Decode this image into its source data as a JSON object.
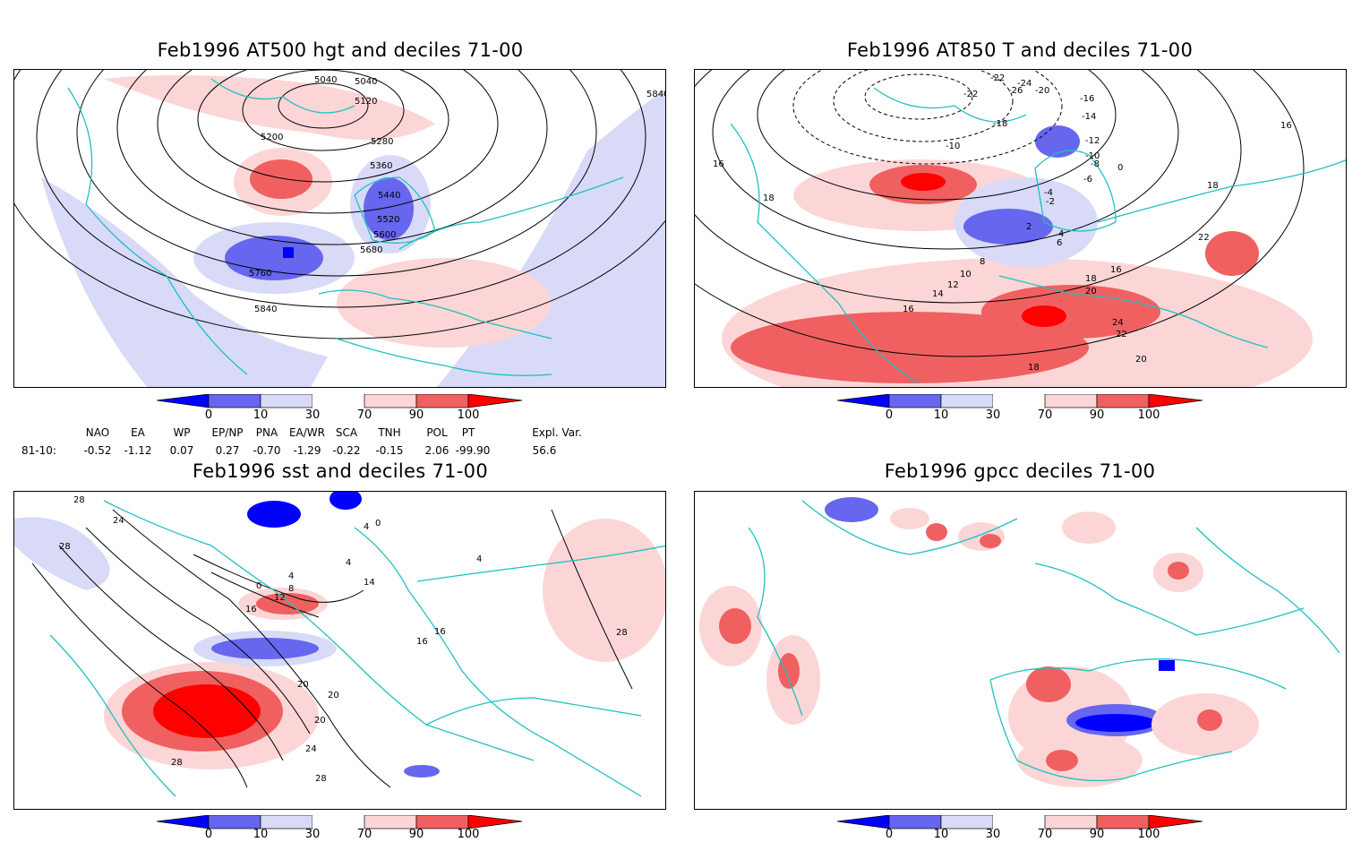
{
  "panels": [
    {
      "id": "p1",
      "title": "Feb1996 AT500 hgt and deciles 71-00",
      "contour_labels": [
        "5040",
        "5040",
        "5120",
        "5200",
        "5280",
        "5360",
        "5440",
        "5520",
        "5600",
        "5680",
        "5760",
        "5840",
        "5840"
      ]
    },
    {
      "id": "p2",
      "title": "Feb1996 AT850 T and deciles 71-00",
      "contour_labels": [
        "-22",
        "-24",
        "-26",
        "-22",
        "-20",
        "-16",
        "-14",
        "-18",
        "-12",
        "-10",
        "-10",
        "-8",
        "-6",
        "0",
        "-4",
        "-2",
        "2",
        "4",
        "6",
        "8",
        "10",
        "12",
        "14",
        "16",
        "16",
        "16",
        "16",
        "18",
        "18",
        "18",
        "18",
        "20",
        "20",
        "22",
        "22",
        "24"
      ]
    },
    {
      "id": "p3",
      "title": "Feb1996 sst and deciles 71-00",
      "contour_labels": [
        "28",
        "28",
        "24",
        "28",
        "20",
        "16",
        "12",
        "8",
        "4",
        "4",
        "0",
        "4",
        "14",
        "16",
        "16",
        "20",
        "20",
        "24",
        "28",
        "28",
        "0",
        "4"
      ]
    },
    {
      "id": "p4",
      "title": "Feb1996 gpcc deciles 71-00",
      "contour_labels": []
    }
  ],
  "colorbar": {
    "labels": [
      "0",
      "10",
      "30",
      "70",
      "90",
      "100"
    ],
    "colors": {
      "dark_blue": "#0000ff",
      "mid_blue": "#6666ee",
      "light_blue": "#d8daf8",
      "white": "#ffffff",
      "light_red": "#fcd6d6",
      "mid_red": "#f06060",
      "dark_red": "#ff0000"
    }
  },
  "indices": {
    "headers": [
      "NAO",
      "EA",
      "WP",
      "EP/NP",
      "PNA",
      "EA/WR",
      "SCA",
      "TNH",
      "POL",
      "PT",
      "Expl. Var."
    ],
    "row_label": "81-10:",
    "values": [
      "-0.52",
      "-1.12",
      "0.07",
      "0.27",
      "-0.70",
      "-1.29",
      "-0.22",
      "-0.15",
      "2.06",
      "-99.90",
      "56.6"
    ]
  },
  "colors": {
    "coastline": "#20c0c0",
    "contour": "#000000",
    "grid": "#999999"
  }
}
